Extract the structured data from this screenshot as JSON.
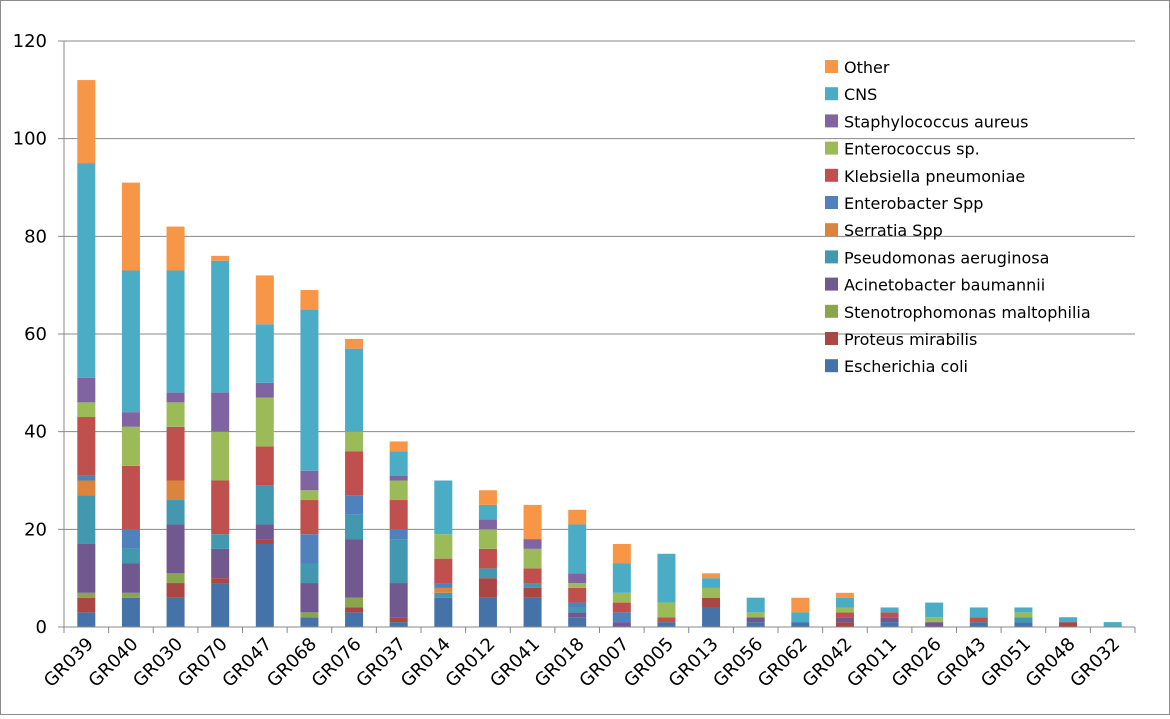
{
  "chart_data": {
    "type": "bar",
    "stacked": true,
    "title": "",
    "xlabel": "",
    "ylabel": "",
    "ylim": [
      0,
      120
    ],
    "yticks": [
      0,
      20,
      40,
      60,
      80,
      100,
      120
    ],
    "grid": "horizontal",
    "legend_position": "top-right",
    "categories": [
      "GR039",
      "GR040",
      "GR030",
      "GR070",
      "GR047",
      "GR068",
      "GR076",
      "GR037",
      "GR014",
      "GR012",
      "GR041",
      "GR018",
      "GR007",
      "GR005",
      "GR013",
      "GR056",
      "GR062",
      "GR042",
      "GR011",
      "GR026",
      "GR043",
      "GR051",
      "GR048",
      "GR032"
    ],
    "series": [
      {
        "name": "Escherichia coli",
        "color": "#4573A7",
        "values": [
          3,
          6,
          6,
          9,
          17,
          2,
          3,
          1,
          6,
          6,
          6,
          2,
          0,
          1,
          4,
          1,
          1,
          0,
          1,
          0,
          1,
          1,
          0,
          0
        ]
      },
      {
        "name": "Proteus mirabilis",
        "color": "#AA4644",
        "values": [
          3,
          0,
          3,
          1,
          1,
          0,
          1,
          1,
          0,
          4,
          2,
          0,
          0,
          0,
          2,
          0,
          0,
          1,
          0,
          0,
          0,
          0,
          1,
          0
        ]
      },
      {
        "name": "Stenotrophomonas maltophilia",
        "color": "#89A54E",
        "values": [
          1,
          1,
          2,
          0,
          0,
          1,
          2,
          0,
          0,
          0,
          0,
          0,
          0,
          0,
          0,
          0,
          0,
          0,
          0,
          0,
          0,
          0,
          0,
          0
        ]
      },
      {
        "name": "Acinetobacter baumannii",
        "color": "#71588F",
        "values": [
          10,
          6,
          10,
          6,
          3,
          6,
          12,
          7,
          0,
          0,
          0,
          1,
          1,
          0,
          0,
          1,
          0,
          1,
          1,
          1,
          0,
          0,
          0,
          0
        ]
      },
      {
        "name": "Pseudomonas aeruginosa",
        "color": "#4198AF",
        "values": [
          10,
          3,
          5,
          3,
          8,
          4,
          5,
          9,
          1,
          2,
          1,
          1,
          0,
          0,
          0,
          0,
          0,
          0,
          0,
          0,
          0,
          1,
          0,
          0
        ]
      },
      {
        "name": "Serratia Spp",
        "color": "#DB843D",
        "values": [
          3,
          0,
          4,
          0,
          0,
          0,
          0,
          0,
          1,
          0,
          0,
          0,
          0,
          0,
          0,
          0,
          0,
          0,
          0,
          0,
          0,
          0,
          0,
          0
        ]
      },
      {
        "name": "Enterobacter Spp",
        "color": "#4F81BD",
        "values": [
          1,
          4,
          0,
          0,
          0,
          6,
          4,
          2,
          1,
          0,
          0,
          1,
          2,
          0,
          0,
          0,
          0,
          0,
          0,
          0,
          0,
          0,
          0,
          0
        ]
      },
      {
        "name": "Klebsiella pneumoniae",
        "color": "#C0504D",
        "values": [
          12,
          13,
          11,
          11,
          8,
          7,
          9,
          6,
          5,
          4,
          3,
          3,
          2,
          1,
          0,
          0,
          0,
          1,
          1,
          0,
          1,
          0,
          0,
          0
        ]
      },
      {
        "name": "Enterococcus sp.",
        "color": "#9BBB59",
        "values": [
          3,
          8,
          5,
          10,
          10,
          2,
          4,
          4,
          5,
          4,
          4,
          1,
          2,
          3,
          2,
          1,
          0,
          1,
          0,
          1,
          0,
          1,
          0,
          0
        ]
      },
      {
        "name": "Staphylococcus aureus",
        "color": "#8064A2",
        "values": [
          5,
          3,
          2,
          8,
          3,
          4,
          0,
          1,
          0,
          2,
          2,
          2,
          0,
          0,
          0,
          0,
          0,
          0,
          0,
          0,
          0,
          0,
          0,
          0
        ]
      },
      {
        "name": "CNS",
        "color": "#4BACC6",
        "values": [
          44,
          29,
          25,
          27,
          12,
          33,
          17,
          5,
          11,
          3,
          0,
          10,
          6,
          10,
          2,
          3,
          2,
          2,
          1,
          3,
          2,
          1,
          1,
          1
        ]
      },
      {
        "name": "Other",
        "color": "#F79646",
        "values": [
          17,
          18,
          9,
          1,
          10,
          4,
          2,
          2,
          0,
          3,
          7,
          3,
          4,
          0,
          1,
          0,
          3,
          1,
          0,
          0,
          0,
          0,
          0,
          0
        ]
      }
    ],
    "legend_order": [
      "Other",
      "CNS",
      "Staphylococcus aureus",
      "Enterococcus sp.",
      "Klebsiella pneumoniae",
      "Enterobacter Spp",
      "Serratia Spp",
      "Pseudomonas aeruginosa",
      "Acinetobacter baumannii",
      "Stenotrophomonas maltophilia",
      "Proteus mirabilis",
      "Escherichia coli"
    ]
  }
}
